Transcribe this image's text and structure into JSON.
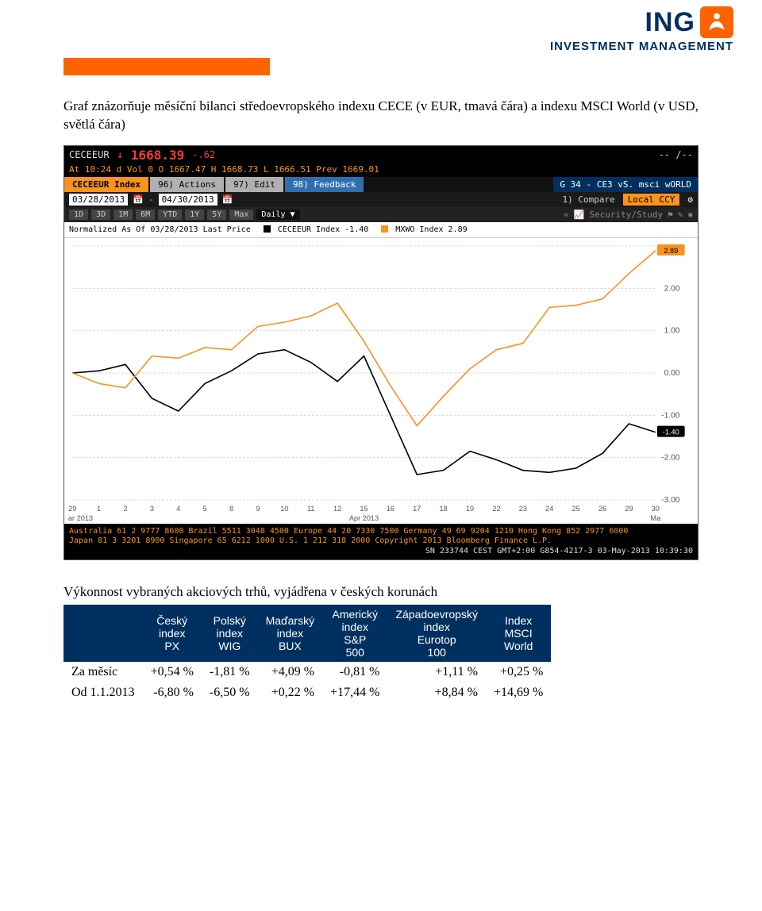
{
  "header": {
    "brand": "ING",
    "subbrand": "INVESTMENT MANAGEMENT",
    "lion_bg": "#ff6200"
  },
  "intro_text": "Graf znázorňuje měsíční bilanci středoevropského indexu CECE (v EUR, tmavá čára) a indexu MSCI World (v USD, světlá čára)",
  "terminal": {
    "symbol": "CECEEUR",
    "arrow": "↓",
    "price": "1668.39",
    "change": "-.62",
    "dashes": "-- /--",
    "at_line": "At 10:24 d   Vol 0          O 1667.47  H 1668.73  L 1666.51  Prev 1669.01",
    "tabs": {
      "index": "CECEEUR Index",
      "actions": "96) Actions",
      "edit": "97) Edit",
      "feedback": "98) Feedback",
      "right": "G 34 - CE3 vS. msci wORLD"
    },
    "dates": {
      "from": "03/28/2013",
      "to": "04/30/2013",
      "compare": "1) Compare",
      "local": "Local CCY"
    },
    "ranges": [
      "1D",
      "3D",
      "1M",
      "6M",
      "YTD",
      "1Y",
      "5Y",
      "Max"
    ],
    "daily": "Daily ▼",
    "sec_study": "Security/Study",
    "legend": "Normalized As Of 03/28/2013   Last Price",
    "legend_a": "CECEEUR Index -1.40",
    "legend_b": "MXWO Index 2.89",
    "footer_lines": [
      "Australia 61 2 9777 8600 Brazil 5511 3048 4500 Europe 44 20 7330 7500 Germany 49 69 9204 1210 Hong Kong 852 2977 6000",
      "Japan 81 3 3201 8900        Singapore 65 6212 1000         U.S. 1 212 318 2000       Copyright 2013 Bloomberg Finance L.P.",
      "SN 233744 CEST GMT+2:00 G854-4217-3 03-May-2013 10:39:30"
    ]
  },
  "chart": {
    "bg": "#ffffff",
    "grid_color": "#d8d8d8",
    "ylim": [
      -3,
      3
    ],
    "ytick_step": 1,
    "yticks": [
      "2.00",
      "1.00",
      "0.00",
      "-1.00",
      "-2.00",
      "-3.00"
    ],
    "orange_pill": {
      "label": "2.89",
      "bg": "#f7931e"
    },
    "black_pill": {
      "label": "-1.40",
      "bg": "#000000",
      "fg": "#ffffff"
    },
    "x_days": [
      "29",
      "1",
      "2",
      "3",
      "4",
      "5",
      "8",
      "9",
      "10",
      "11",
      "12",
      "15",
      "16",
      "17",
      "18",
      "19",
      "22",
      "23",
      "24",
      "25",
      "26",
      "29",
      "30"
    ],
    "x_month_split": {
      "left": "ar 2013",
      "right": "Apr 2013",
      "far_right": "Ma"
    },
    "black_series": [
      0.0,
      0.05,
      0.2,
      -0.6,
      -0.9,
      -0.25,
      0.05,
      0.45,
      0.55,
      0.25,
      -0.2,
      0.4,
      -1.0,
      -2.4,
      -2.3,
      -1.85,
      -2.05,
      -2.3,
      -2.35,
      -2.25,
      -1.9,
      -1.2,
      -1.4
    ],
    "orange_series": [
      0.0,
      -0.25,
      -0.35,
      0.4,
      0.35,
      0.6,
      0.55,
      1.1,
      1.2,
      1.35,
      1.65,
      0.75,
      -0.3,
      -1.25,
      -0.55,
      0.1,
      0.55,
      0.7,
      1.55,
      1.6,
      1.75,
      2.35,
      2.89
    ]
  },
  "perf_title": "Výkonnost vybraných akciových trhů, vyjádřena v českých korunách",
  "perf_table": {
    "columns": [
      "",
      "Český index PX",
      "Polský index WIG",
      "Maďarský index BUX",
      "Americký index S&P 500",
      "Západoevropský index Eurotop 100",
      "Index MSCI World"
    ],
    "rows": [
      [
        "Za měsíc",
        "+0,54 %",
        "-1,81 %",
        "+4,09 %",
        "-0,81 %",
        "+1,11 %",
        "+0,25 %"
      ],
      [
        "Od 1.1.2013",
        "-6,80 %",
        "-6,50 %",
        "+0,22 %",
        "+17,44 %",
        "+8,84 %",
        "+14,69 %"
      ]
    ],
    "header_bg": "#003060",
    "header_fg": "#ffffff"
  }
}
